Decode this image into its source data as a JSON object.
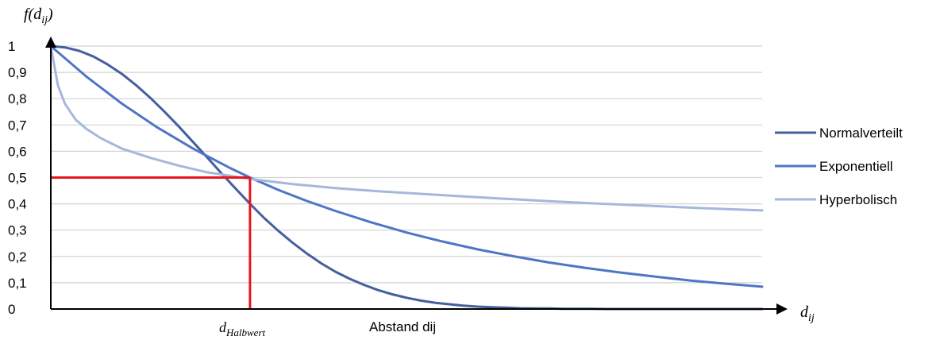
{
  "chart_data": {
    "type": "line",
    "title": "",
    "xlabel": "Abstand dij",
    "ylabel": "f(d_ij)",
    "y_axis_label": {
      "main": "f(d",
      "sub": "ij",
      "close": ")"
    },
    "x_axis_symbol": {
      "main": "d",
      "sub": "ij"
    },
    "marker_label": {
      "main": "d",
      "sub": "Halbwert"
    },
    "ylim": [
      0,
      1
    ],
    "xlim": [
      0,
      1
    ],
    "grid": true,
    "legend_position": "right",
    "y_tick_labels": [
      "0",
      "0,1",
      "0,2",
      "0,3",
      "0,4",
      "0,5",
      "0,6",
      "0,7",
      "0,8",
      "0,9",
      "1"
    ],
    "x_half_value": 0.28,
    "series": [
      {
        "name": "Normalverteilt",
        "color": "#44609c",
        "x": [
          0,
          0.02,
          0.04,
          0.06,
          0.08,
          0.1,
          0.12,
          0.14,
          0.16,
          0.18,
          0.2,
          0.22,
          0.24,
          0.26,
          0.28,
          0.3,
          0.32,
          0.34,
          0.36,
          0.38,
          0.4,
          0.42,
          0.44,
          0.46,
          0.48,
          0.5,
          0.52,
          0.54,
          0.56,
          0.58,
          0.6,
          0.62,
          0.64,
          0.66,
          0.68,
          0.7,
          0.72,
          0.74,
          0.76,
          0.78,
          0.8,
          0.84,
          0.88,
          0.92,
          0.96,
          1.0
        ],
        "y": [
          1.0,
          0.995,
          0.982,
          0.96,
          0.93,
          0.894,
          0.851,
          0.803,
          0.75,
          0.694,
          0.635,
          0.576,
          0.516,
          0.457,
          0.4,
          0.346,
          0.297,
          0.252,
          0.211,
          0.174,
          0.142,
          0.115,
          0.092,
          0.072,
          0.056,
          0.043,
          0.032,
          0.024,
          0.018,
          0.013,
          0.009,
          0.007,
          0.005,
          0.003,
          0.002,
          0.002,
          0.001,
          0.001,
          0.001,
          0.0,
          0.0,
          0.0,
          0.0,
          0.0,
          0.0,
          0.0
        ]
      },
      {
        "name": "Exponentiell",
        "color": "#4f76c5",
        "x": [
          0,
          0.05,
          0.1,
          0.15,
          0.2,
          0.25,
          0.28,
          0.32,
          0.36,
          0.4,
          0.45,
          0.5,
          0.55,
          0.6,
          0.65,
          0.7,
          0.75,
          0.8,
          0.85,
          0.9,
          0.95,
          1.0
        ],
        "y": [
          1.0,
          0.884,
          0.781,
          0.69,
          0.61,
          0.539,
          0.5,
          0.453,
          0.411,
          0.373,
          0.33,
          0.291,
          0.257,
          0.227,
          0.201,
          0.177,
          0.157,
          0.139,
          0.123,
          0.108,
          0.096,
          0.085
        ]
      },
      {
        "name": "Hyperbolisch",
        "color": "#a6b7dc",
        "x": [
          0,
          0.01,
          0.02,
          0.035,
          0.05,
          0.07,
          0.1,
          0.14,
          0.18,
          0.22,
          0.28,
          0.34,
          0.4,
          0.46,
          0.52,
          0.58,
          0.64,
          0.7,
          0.76,
          0.82,
          0.88,
          0.94,
          1.0
        ],
        "y": [
          1.0,
          0.85,
          0.78,
          0.72,
          0.685,
          0.65,
          0.61,
          0.575,
          0.545,
          0.52,
          0.495,
          0.475,
          0.46,
          0.448,
          0.438,
          0.428,
          0.419,
          0.41,
          0.402,
          0.395,
          0.388,
          0.381,
          0.375
        ]
      }
    ],
    "reference_lines": {
      "color": "#e8161c",
      "y_value": 0.5
    },
    "grid_color": "#d3d3d3",
    "axis_color": "#000000"
  }
}
